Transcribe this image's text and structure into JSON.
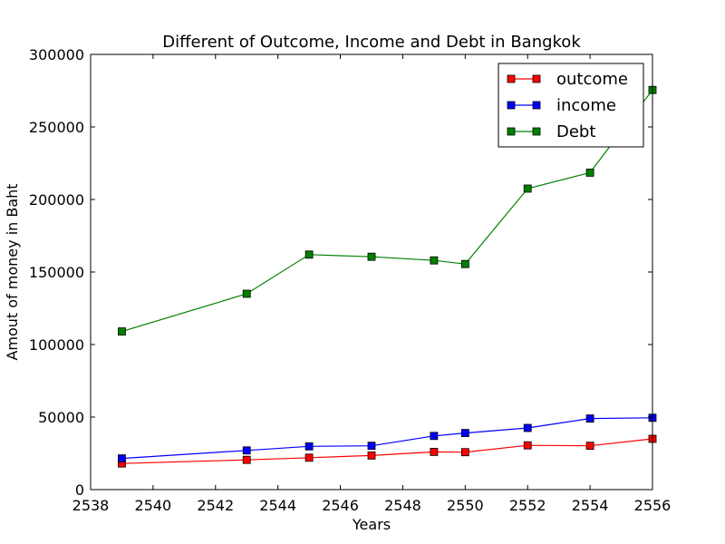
{
  "chart_data": {
    "type": "line",
    "title": "Different of Outcome, Income and Debt in Bangkok",
    "xlabel": "Years",
    "ylabel": "Amout of money in Baht",
    "xlim": [
      2538,
      2556
    ],
    "ylim": [
      0,
      300000
    ],
    "xticks": [
      "2538",
      "2540",
      "2542",
      "2544",
      "2546",
      "2548",
      "2550",
      "2552",
      "2554",
      "2556"
    ],
    "yticks": [
      "0",
      "50000",
      "100000",
      "150000",
      "200000",
      "250000",
      "300000"
    ],
    "grid": false,
    "legend_position": "top-right",
    "x": [
      2539,
      2543,
      2545,
      2547,
      2549,
      2550,
      2552,
      2554,
      2556
    ],
    "series": [
      {
        "name": "outcome",
        "color": "#ff0000",
        "marker": "square",
        "values": [
          18000,
          20500,
          22000,
          23500,
          26000,
          25800,
          30500,
          30200,
          35000
        ]
      },
      {
        "name": "income",
        "color": "#0000ff",
        "marker": "square",
        "values": [
          21500,
          27000,
          29800,
          30200,
          37000,
          39000,
          42500,
          49000,
          49500
        ]
      },
      {
        "name": "Debt",
        "color": "#008000",
        "marker": "square",
        "values": [
          109000,
          135000,
          162000,
          160500,
          158000,
          155500,
          207500,
          218500,
          275500
        ]
      }
    ]
  }
}
